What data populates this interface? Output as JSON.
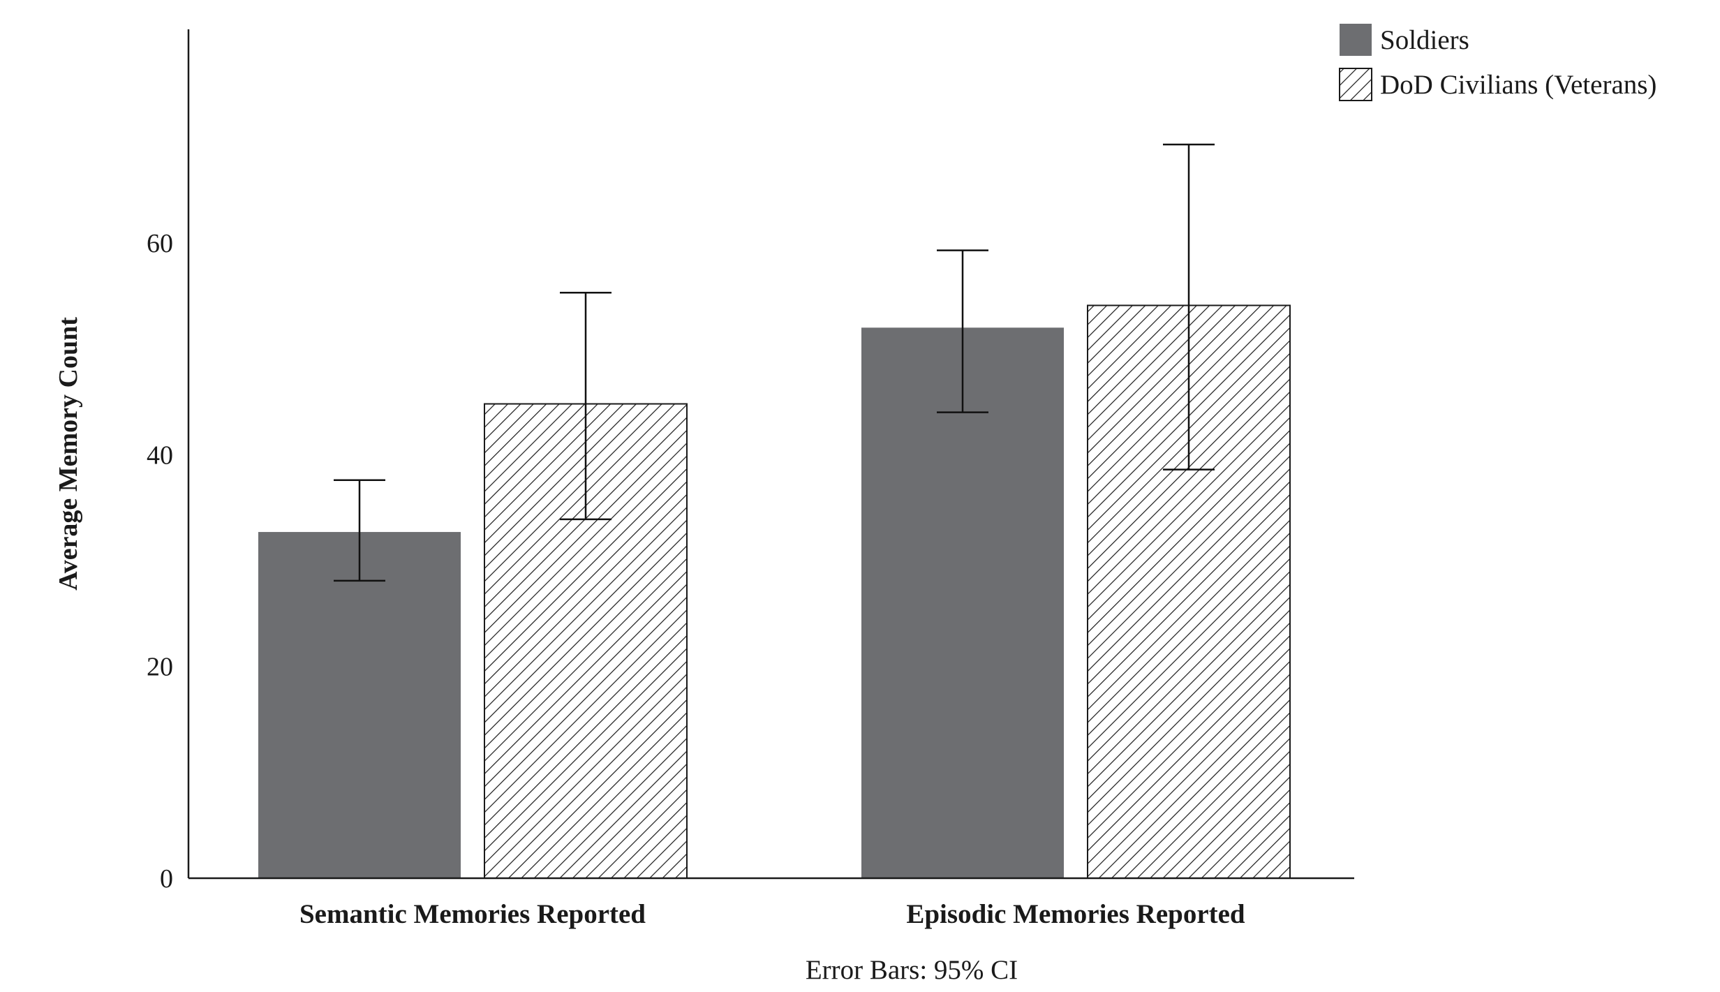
{
  "chart_data": {
    "type": "bar",
    "categories": [
      "Semantic Memories Reported",
      "Episodic Memories Reported"
    ],
    "series": [
      {
        "name": "Soldiers",
        "values": [
          32.7,
          52.0
        ],
        "ci_low": [
          28.1,
          44.0
        ],
        "ci_high": [
          37.6,
          59.3
        ],
        "fill": "solid",
        "color": "#6d6e71"
      },
      {
        "name": "DoD Civilians (Veterans)",
        "values": [
          44.8,
          54.1
        ],
        "ci_low": [
          33.9,
          38.6
        ],
        "ci_high": [
          55.3,
          69.3
        ],
        "fill": "diagonal-hatch",
        "color": "#1a1a1a"
      }
    ],
    "ylabel": "Average Memory Count",
    "xlabel": "",
    "ylim": [
      0,
      80
    ],
    "yticks": [
      0,
      20,
      40,
      60
    ],
    "note": "Error Bars: 95% CI",
    "grid": false,
    "legend_position": "top-right"
  }
}
